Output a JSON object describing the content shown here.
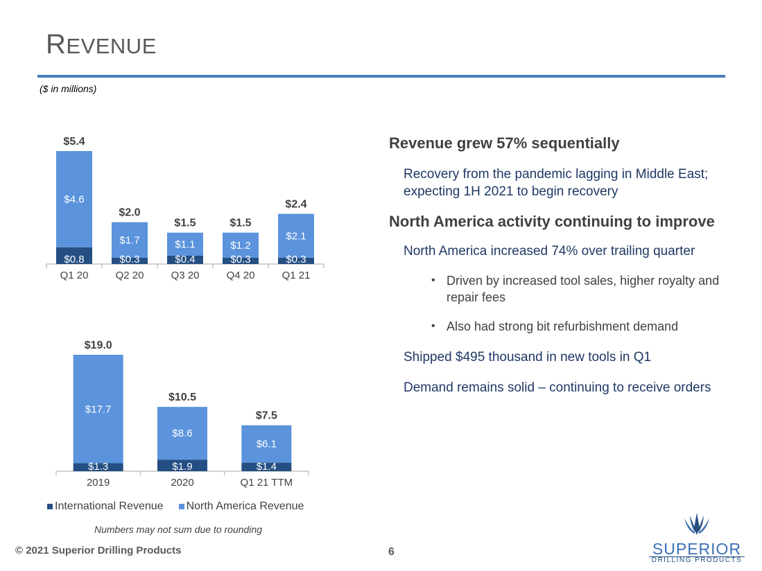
{
  "title": "Revenue",
  "units_note": "($ in millions)",
  "legend": {
    "international": "International Revenue",
    "north_america": "North America Revenue",
    "colors": {
      "international": "#254f82",
      "north_america": "#5b93dc"
    }
  },
  "chart_data": [
    {
      "type": "bar",
      "stacked": true,
      "categories": [
        "Q1 20",
        "Q2 20",
        "Q3 20",
        "Q4 20",
        "Q1 21"
      ],
      "series": [
        {
          "name": "International Revenue",
          "values": [
            0.8,
            0.3,
            0.4,
            0.3,
            0.3
          ],
          "labels": [
            "$0.8",
            "$0.3",
            "$0.4",
            "$0.3",
            "$0.3"
          ]
        },
        {
          "name": "North America Revenue",
          "values": [
            4.6,
            1.7,
            1.1,
            1.2,
            2.1
          ],
          "labels": [
            "$4.6",
            "$1.7",
            "$1.1",
            "$1.2",
            "$2.1"
          ]
        }
      ],
      "totals": [
        5.4,
        2.0,
        1.5,
        1.5,
        2.4
      ],
      "total_labels": [
        "$5.4",
        "$2.0",
        "$1.5",
        "$1.5",
        "$2.4"
      ],
      "ylim": [
        0,
        5.4
      ]
    },
    {
      "type": "bar",
      "stacked": true,
      "categories": [
        "2019",
        "2020",
        "Q1  21 TTM"
      ],
      "series": [
        {
          "name": "International Revenue",
          "values": [
            1.3,
            1.9,
            1.4
          ],
          "labels": [
            "$1.3",
            "$1.9",
            "$1.4"
          ]
        },
        {
          "name": "North America Revenue",
          "values": [
            17.7,
            8.6,
            6.1
          ],
          "labels": [
            "$17.7",
            "$8.6",
            "$6.1"
          ]
        }
      ],
      "totals": [
        19.0,
        10.5,
        7.5
      ],
      "total_labels": [
        "$19.0",
        "$10.5",
        "$7.5"
      ],
      "ylim": [
        0,
        19.0
      ]
    }
  ],
  "rounding_note": "Numbers may not sum due to rounding",
  "highlights": {
    "h1": "Revenue grew 57% sequentially",
    "h1_detail": "Recovery from the pandemic lagging in Middle East; expecting 1H 2021 to begin recovery",
    "h2": "North America activity continuing to improve",
    "h2_detail": "North America increased 74% over trailing quarter",
    "bullet1": "Driven by increased tool sales, higher royalty and repair fees",
    "bullet2": "Also had strong bit refurbishment demand",
    "shipped": "Shipped $495 thousand in new tools in Q1",
    "demand": "Demand remains solid – continuing to receive orders"
  },
  "footer": {
    "copyright": "© 2021 Superior Drilling Products",
    "page_number": "6",
    "logo_word": "SUPERIOR",
    "logo_sub": "DRILLING PRODUCTS"
  }
}
